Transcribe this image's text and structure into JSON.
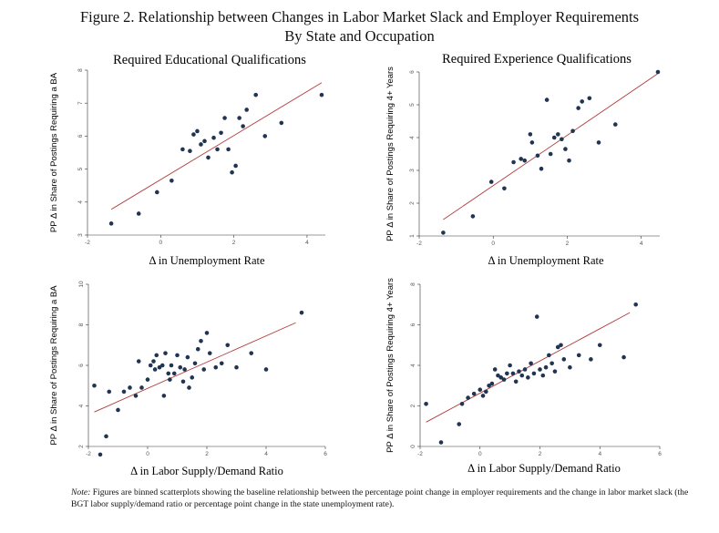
{
  "figure": {
    "title_line1": "Figure 2. Relationship between Changes in Labor Market Slack and Employer Requirements",
    "title_line2": "By State and Occupation",
    "note_label": "Note:",
    "note_text": " Figures are binned scatterplots showing the baseline relationship between the percentage point change in employer requirements and the change in labor market slack (the BGT labor supply/demand ratio or percentage point change in the state unemployment rate)."
  },
  "colors": {
    "marker": "#1f3552",
    "fit_line": "#b23a3a",
    "axis": "#333333"
  },
  "chart_data": [
    {
      "type": "scatter",
      "title": "Required Educational Qualifications",
      "xlabel": "Δ in Unemployment Rate",
      "ylabel": "PP Δ in Share of Postings Requiring a BA",
      "xlim": [
        -2,
        4.5
      ],
      "ylim": [
        3,
        8
      ],
      "xticks": [
        -2,
        0,
        2,
        4
      ],
      "xtick_labels": [
        "-2",
        "0",
        "2",
        "4"
      ],
      "yticks": [
        3,
        4,
        5,
        6,
        7,
        8
      ],
      "ytick_labels": [
        "3",
        "4",
        "5",
        "6",
        "7",
        "8"
      ],
      "points": [
        [
          -1.35,
          3.35
        ],
        [
          -0.6,
          3.65
        ],
        [
          -0.1,
          4.3
        ],
        [
          0.3,
          4.65
        ],
        [
          0.6,
          5.6
        ],
        [
          0.8,
          5.55
        ],
        [
          0.9,
          6.05
        ],
        [
          1.0,
          6.15
        ],
        [
          1.1,
          5.75
        ],
        [
          1.2,
          5.85
        ],
        [
          1.3,
          5.35
        ],
        [
          1.45,
          5.95
        ],
        [
          1.55,
          5.6
        ],
        [
          1.65,
          6.1
        ],
        [
          1.75,
          6.55
        ],
        [
          1.85,
          5.6
        ],
        [
          1.95,
          4.9
        ],
        [
          2.05,
          5.1
        ],
        [
          2.15,
          6.55
        ],
        [
          2.25,
          6.3
        ],
        [
          2.35,
          6.8
        ],
        [
          2.6,
          7.25
        ],
        [
          2.85,
          6.0
        ],
        [
          3.3,
          6.4
        ],
        [
          4.4,
          7.25
        ]
      ],
      "fit": [
        [
          -1.35,
          3.78
        ],
        [
          4.4,
          7.62
        ]
      ]
    },
    {
      "type": "scatter",
      "title": "Required Experience Qualifications",
      "xlabel": "Δ in Unemployment Rate",
      "ylabel": "PP Δ in Share of Postings Requiring 4+ Years",
      "xlim": [
        -2,
        4.5
      ],
      "ylim": [
        1,
        6
      ],
      "xticks": [
        -2,
        0,
        2,
        4
      ],
      "xtick_labels": [
        "-2",
        "0",
        "2",
        "4"
      ],
      "yticks": [
        1,
        2,
        3,
        4,
        5,
        6
      ],
      "ytick_labels": [
        "1",
        "2",
        "3",
        "4",
        "5",
        "6"
      ],
      "points": [
        [
          -1.35,
          1.1
        ],
        [
          -0.55,
          1.6
        ],
        [
          -0.05,
          2.65
        ],
        [
          0.3,
          2.45
        ],
        [
          0.55,
          3.25
        ],
        [
          0.75,
          3.35
        ],
        [
          0.85,
          3.3
        ],
        [
          1.0,
          4.1
        ],
        [
          1.05,
          3.85
        ],
        [
          1.2,
          3.45
        ],
        [
          1.3,
          3.05
        ],
        [
          1.45,
          5.15
        ],
        [
          1.55,
          3.5
        ],
        [
          1.65,
          4.0
        ],
        [
          1.75,
          4.1
        ],
        [
          1.85,
          3.95
        ],
        [
          1.95,
          3.65
        ],
        [
          2.05,
          3.3
        ],
        [
          2.15,
          4.2
        ],
        [
          2.3,
          4.9
        ],
        [
          2.4,
          5.1
        ],
        [
          2.6,
          5.2
        ],
        [
          2.85,
          3.85
        ],
        [
          3.3,
          4.4
        ],
        [
          4.45,
          6.0
        ]
      ],
      "fit": [
        [
          -1.35,
          1.5
        ],
        [
          4.45,
          5.95
        ]
      ]
    },
    {
      "type": "scatter",
      "title": "",
      "xlabel": "Δ in Labor Supply/Demand Ratio",
      "ylabel": "PP Δ in Share of Postings Requiring a BA",
      "xlim": [
        -2,
        6
      ],
      "ylim": [
        2,
        10
      ],
      "xticks": [
        -2,
        0,
        2,
        4,
        6
      ],
      "xtick_labels": [
        "-2",
        "0",
        "2",
        "4",
        "6"
      ],
      "yticks": [
        2,
        4,
        6,
        8,
        10
      ],
      "ytick_labels": [
        "2",
        "4",
        "6",
        "8",
        "10"
      ],
      "points": [
        [
          -1.8,
          5.0
        ],
        [
          -1.6,
          1.6
        ],
        [
          -1.4,
          2.5
        ],
        [
          -1.3,
          4.7
        ],
        [
          -1.0,
          3.8
        ],
        [
          -0.8,
          4.7
        ],
        [
          -0.6,
          4.9
        ],
        [
          -0.4,
          4.5
        ],
        [
          -0.3,
          6.2
        ],
        [
          -0.2,
          4.9
        ],
        [
          0.0,
          5.3
        ],
        [
          0.1,
          6.0
        ],
        [
          0.2,
          6.2
        ],
        [
          0.25,
          5.8
        ],
        [
          0.3,
          6.5
        ],
        [
          0.4,
          5.9
        ],
        [
          0.5,
          6.0
        ],
        [
          0.55,
          4.5
        ],
        [
          0.6,
          6.6
        ],
        [
          0.7,
          5.6
        ],
        [
          0.75,
          5.3
        ],
        [
          0.8,
          6.0
        ],
        [
          0.9,
          5.6
        ],
        [
          1.0,
          6.5
        ],
        [
          1.1,
          5.9
        ],
        [
          1.2,
          5.2
        ],
        [
          1.25,
          5.8
        ],
        [
          1.35,
          6.4
        ],
        [
          1.4,
          4.9
        ],
        [
          1.5,
          5.4
        ],
        [
          1.6,
          6.1
        ],
        [
          1.7,
          6.8
        ],
        [
          1.8,
          7.2
        ],
        [
          1.9,
          5.8
        ],
        [
          2.0,
          7.6
        ],
        [
          2.1,
          6.6
        ],
        [
          2.3,
          5.9
        ],
        [
          2.5,
          6.1
        ],
        [
          2.7,
          7.0
        ],
        [
          3.0,
          5.9
        ],
        [
          3.5,
          6.6
        ],
        [
          4.0,
          5.8
        ],
        [
          5.2,
          8.6
        ]
      ],
      "fit": [
        [
          -1.8,
          3.7
        ],
        [
          5.0,
          8.1
        ]
      ]
    },
    {
      "type": "scatter",
      "title": "",
      "xlabel": "Δ in Labor Supply/Demand Ratio",
      "ylabel": "PP Δ in Share of Postings Requiring 4+ Years",
      "xlim": [
        -2,
        6
      ],
      "ylim": [
        0,
        8
      ],
      "xticks": [
        -2,
        0,
        2,
        4,
        6
      ],
      "xtick_labels": [
        "-2",
        "0",
        "2",
        "4",
        "6"
      ],
      "yticks": [
        0,
        2,
        4,
        6,
        8
      ],
      "ytick_labels": [
        "0",
        "2",
        "4",
        "6",
        "8"
      ],
      "points": [
        [
          -1.8,
          2.1
        ],
        [
          -1.3,
          0.2
        ],
        [
          -0.7,
          1.1
        ],
        [
          -0.6,
          2.1
        ],
        [
          -0.4,
          2.4
        ],
        [
          -0.2,
          2.6
        ],
        [
          0.0,
          2.8
        ],
        [
          0.1,
          2.5
        ],
        [
          0.2,
          2.7
        ],
        [
          0.3,
          3.0
        ],
        [
          0.4,
          3.1
        ],
        [
          0.5,
          3.8
        ],
        [
          0.6,
          3.5
        ],
        [
          0.7,
          3.4
        ],
        [
          0.8,
          3.3
        ],
        [
          0.9,
          3.6
        ],
        [
          1.0,
          4.0
        ],
        [
          1.1,
          3.6
        ],
        [
          1.2,
          3.2
        ],
        [
          1.3,
          3.7
        ],
        [
          1.4,
          3.5
        ],
        [
          1.5,
          3.8
        ],
        [
          1.6,
          3.4
        ],
        [
          1.7,
          4.1
        ],
        [
          1.8,
          3.6
        ],
        [
          1.9,
          6.4
        ],
        [
          2.0,
          3.8
        ],
        [
          2.1,
          3.5
        ],
        [
          2.2,
          3.9
        ],
        [
          2.3,
          4.5
        ],
        [
          2.4,
          4.1
        ],
        [
          2.5,
          3.7
        ],
        [
          2.6,
          4.9
        ],
        [
          2.7,
          5.0
        ],
        [
          2.8,
          4.3
        ],
        [
          3.0,
          3.9
        ],
        [
          3.3,
          4.5
        ],
        [
          3.7,
          4.3
        ],
        [
          4.0,
          5.0
        ],
        [
          4.8,
          4.4
        ],
        [
          5.2,
          7.0
        ]
      ],
      "fit": [
        [
          -1.8,
          1.2
        ],
        [
          5.0,
          6.6
        ]
      ]
    }
  ]
}
